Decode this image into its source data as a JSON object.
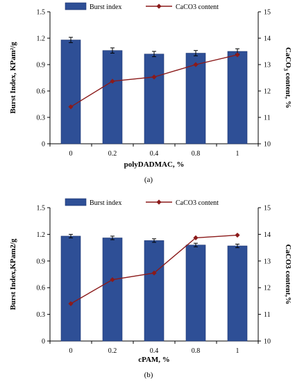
{
  "colors": {
    "bar": "#2E4F96",
    "bar_edge": "#1d3570",
    "line": "#8B1A1A",
    "axis": "#000000"
  },
  "chart_data": [
    {
      "type": "bar",
      "caption": "(a)",
      "categories": [
        "0",
        "0.2",
        "0.4",
        "0.8",
        "1"
      ],
      "xlabel": "polyDADMAC, %",
      "ylabel": "Burst Index, KPam²/g",
      "ylabel2": "CaCO3 content, %",
      "ylabel2_sub": "3",
      "ylim": [
        0,
        1.5
      ],
      "yticks": [
        "0",
        "0.3",
        "0.6",
        "0.9",
        "1.2",
        "1.5"
      ],
      "y2lim": [
        10,
        15
      ],
      "y2ticks": [
        "10",
        "11",
        "12",
        "13",
        "14",
        "15"
      ],
      "legend_position": "top",
      "series": [
        {
          "name": "Burst index",
          "type": "bar",
          "values": [
            1.18,
            1.06,
            1.02,
            1.03,
            1.05
          ],
          "errors": [
            0.03,
            0.03,
            0.03,
            0.03,
            0.03
          ]
        },
        {
          "name": "CaCO3 content",
          "type": "line",
          "axis": "right",
          "values": [
            11.4,
            12.37,
            12.53,
            13.0,
            13.37
          ]
        }
      ]
    },
    {
      "type": "bar",
      "caption": "(b)",
      "categories": [
        "0",
        "0.2",
        "0.4",
        "0.8",
        "1"
      ],
      "xlabel": "cPAM, %",
      "ylabel": "Burst Index,KPam2/g",
      "ylabel2": "CaCO3 content,%",
      "ylim": [
        0,
        1.5
      ],
      "yticks": [
        "0",
        "0.3",
        "0.6",
        "0.9",
        "1.2",
        "1.5"
      ],
      "y2lim": [
        10,
        15
      ],
      "y2ticks": [
        "10",
        "11",
        "12",
        "13",
        "14",
        "15"
      ],
      "legend_position": "top",
      "series": [
        {
          "name": "Burst index",
          "type": "bar",
          "values": [
            1.18,
            1.16,
            1.13,
            1.08,
            1.07
          ],
          "errors": [
            0.02,
            0.02,
            0.02,
            0.02,
            0.02
          ]
        },
        {
          "name": "CaCO3 content",
          "type": "line",
          "axis": "right",
          "values": [
            11.4,
            12.3,
            12.55,
            13.87,
            13.97
          ]
        }
      ]
    }
  ]
}
